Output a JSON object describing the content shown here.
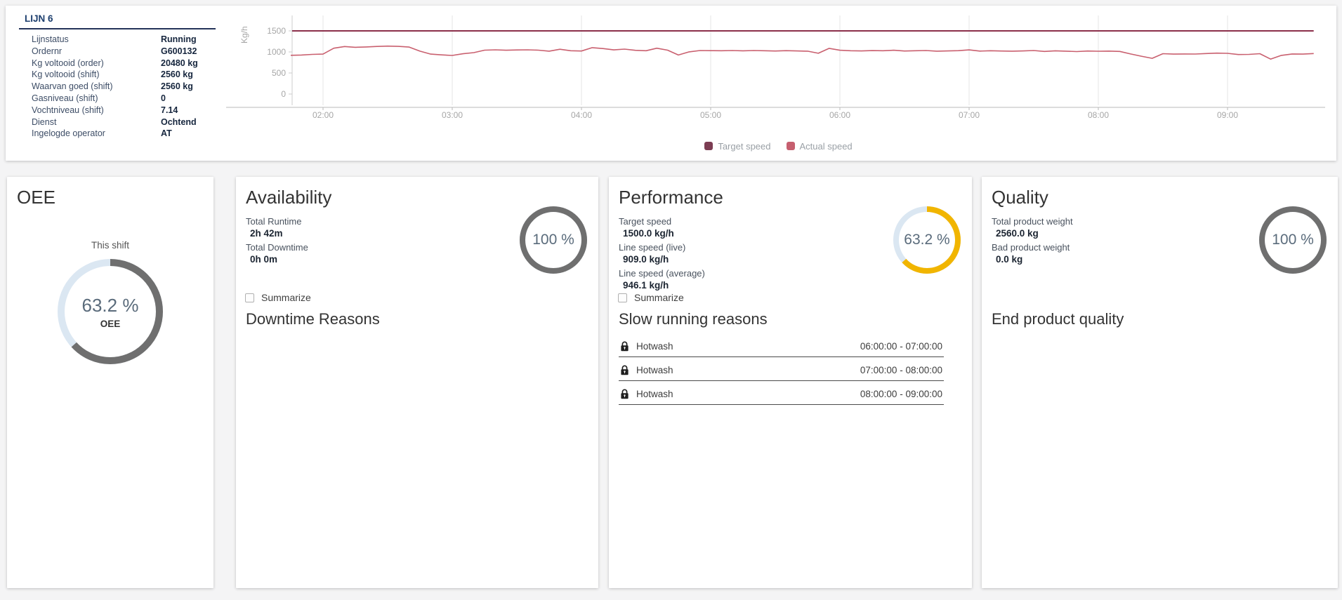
{
  "line_info": {
    "title": "LIJN 6",
    "rows": [
      {
        "label": "Lijnstatus",
        "value": "Running"
      },
      {
        "label": "Ordernr",
        "value": "G600132"
      },
      {
        "label": "Kg voltooid (order)",
        "value": "20480 kg"
      },
      {
        "label": "Kg voltooid (shift)",
        "value": "2560 kg"
      },
      {
        "label": "Waarvan goed (shift)",
        "value": "2560 kg"
      },
      {
        "label": "Gasniveau (shift)",
        "value": "0"
      },
      {
        "label": "Vochtniveau (shift)",
        "value": "7.14"
      },
      {
        "label": "Dienst",
        "value": "Ochtend"
      },
      {
        "label": "Ingelogde operator",
        "value": "AT"
      }
    ]
  },
  "chart_data": {
    "type": "line",
    "ylabel": "Kg/h",
    "y_ticks": [
      0,
      500,
      1000,
      1500
    ],
    "ylim": [
      0,
      1800
    ],
    "x_tick_labels": [
      "02:00",
      "03:00",
      "04:00",
      "05:00",
      "06:00",
      "07:00",
      "08:00",
      "09:00"
    ],
    "x_tick_hours": [
      2,
      3,
      4,
      5,
      6,
      7,
      8,
      9
    ],
    "x_start_hour": 1.75,
    "interval_minutes": 5,
    "grid": "vertical-only",
    "legend_position": "bottom-center",
    "legend": [
      {
        "name": "Target speed",
        "color": "#7c3d53"
      },
      {
        "name": "Actual speed",
        "color": "#c65f6f"
      }
    ],
    "series": [
      {
        "name": "Target speed",
        "color": "#8b2f4a",
        "constant": 1500
      },
      {
        "name": "Actual speed",
        "color": "#c9606f",
        "values": [
          920,
          926,
          942,
          948,
          1088,
          1128,
          1110,
          1118,
          1130,
          1138,
          1132,
          1115,
          1018,
          948,
          930,
          916,
          956,
          984,
          1042,
          1050,
          1040,
          1046,
          1050,
          1042,
          1018,
          1064,
          1028,
          1022,
          1102,
          1080,
          1048,
          1066,
          1038,
          1028,
          1088,
          1042,
          926,
          1002,
          1034,
          1030,
          1028,
          1034,
          1026,
          1034,
          1028,
          1022,
          1030,
          1024,
          1018,
          968,
          1085,
          1040,
          1028,
          1024,
          1032,
          1028,
          1040,
          1022,
          1028,
          1034,
          1018,
          1024,
          1030,
          1048,
          1020,
          1028,
          1022,
          1018,
          1024,
          1034,
          1012,
          1026,
          1018,
          1008,
          1022,
          1016,
          1020,
          1012,
          952,
          898,
          848,
          958,
          948,
          952,
          950,
          962,
          972,
          966,
          938,
          942,
          958,
          830,
          918,
          952,
          948,
          962
        ]
      }
    ]
  },
  "cards": {
    "oee": {
      "title": "OEE",
      "subtitle": "This shift",
      "donut": {
        "pct": 63.2,
        "label": "63.2 %",
        "sublabel": "OEE",
        "color": "#6f6f6f",
        "track": "#dbe7f2"
      }
    },
    "availability": {
      "title": "Availability",
      "stats": [
        {
          "label": "Total Runtime",
          "value": "2h 42m"
        },
        {
          "label": "Total Downtime",
          "value": "0h 0m"
        }
      ],
      "donut": {
        "pct": 100,
        "label": "100 %",
        "color": "#6f6f6f",
        "track": "#dbe7f2"
      },
      "summarize_label": "Summarize",
      "section_title": "Downtime Reasons",
      "reasons": []
    },
    "performance": {
      "title": "Performance",
      "stats": [
        {
          "label": "Target speed",
          "value": "1500.0 kg/h"
        },
        {
          "label": "Line speed (live)",
          "value": "909.0 kg/h"
        },
        {
          "label": "Line speed (average)",
          "value": "946.1 kg/h"
        }
      ],
      "donut": {
        "pct": 63.2,
        "label": "63.2 %",
        "color": "#f1b500",
        "track": "#dbe7f2"
      },
      "summarize_label": "Summarize",
      "section_title": "Slow running reasons",
      "reasons": [
        {
          "name": "Hotwash",
          "time": "06:00:00 - 07:00:00"
        },
        {
          "name": "Hotwash",
          "time": "07:00:00 - 08:00:00"
        },
        {
          "name": "Hotwash",
          "time": "08:00:00 - 09:00:00"
        }
      ]
    },
    "quality": {
      "title": "Quality",
      "stats": [
        {
          "label": "Total product weight",
          "value": "2560.0 kg"
        },
        {
          "label": "Bad product weight",
          "value": "0.0 kg"
        }
      ],
      "donut": {
        "pct": 100,
        "label": "100 %",
        "color": "#6f6f6f",
        "track": "#dbe7f2"
      },
      "section_title": "End product quality",
      "reasons": []
    }
  }
}
